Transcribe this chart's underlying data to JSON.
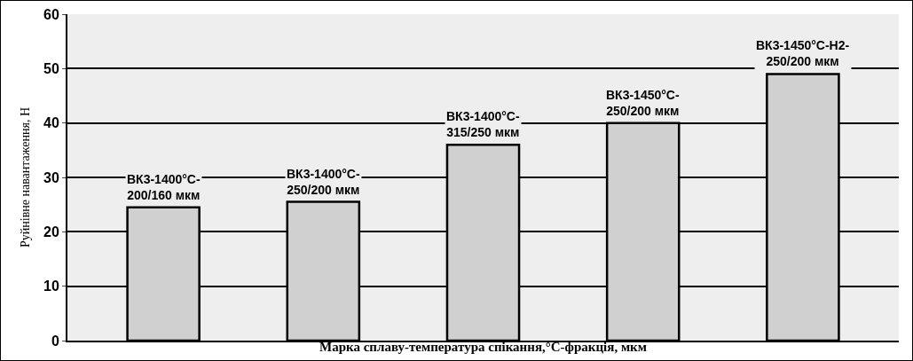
{
  "chart_data": {
    "type": "bar",
    "categories": [
      "ВК3-1400°С-200/160 мкм",
      "ВК3-1400°С-250/200 мкм",
      "ВК3-1400°С-315/250 мкм",
      "ВК3-1450°С-250/200 мкм",
      "ВК3-1450°С-Н2-250/200 мкм"
    ],
    "values": [
      24.5,
      25.5,
      36,
      40,
      49
    ],
    "color": "#d0d0d0",
    "xlabel": "Марка сплаву-температура спікання,°С-фракція, мкм",
    "ylabel": "Руйнівне навантаження, Н",
    "ylim": [
      0,
      60
    ],
    "yticks": [
      0,
      10,
      20,
      30,
      40,
      50,
      60
    ],
    "grid": "y",
    "legend": false
  }
}
